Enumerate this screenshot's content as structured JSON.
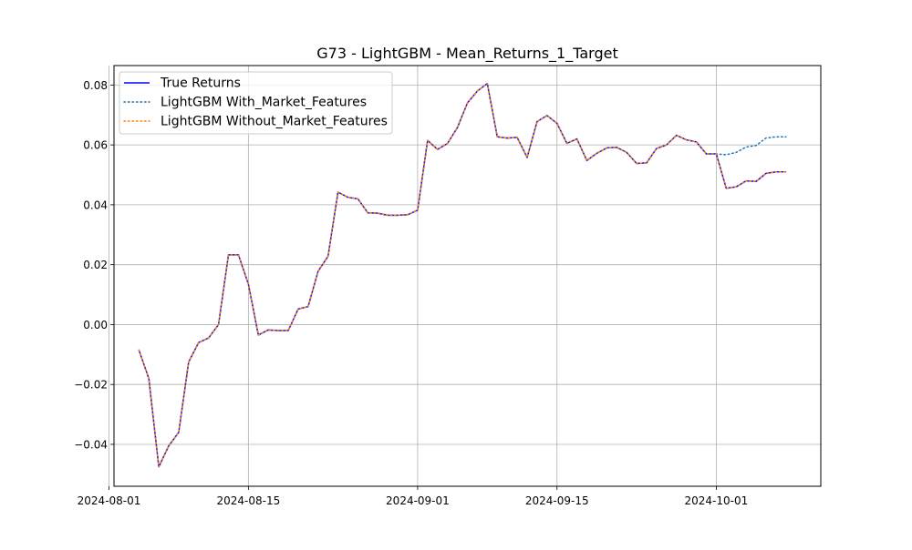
{
  "chart_data": {
    "type": "line",
    "title": "G73 - LightGBM - Mean_Returns_1_Target",
    "xlabel": "",
    "ylabel": "",
    "grid": true,
    "legend_position": "top-left",
    "x": [
      "2024-08-04",
      "2024-08-05",
      "2024-08-06",
      "2024-08-07",
      "2024-08-08",
      "2024-08-09",
      "2024-08-10",
      "2024-08-11",
      "2024-08-12",
      "2024-08-13",
      "2024-08-14",
      "2024-08-15",
      "2024-08-16",
      "2024-08-17",
      "2024-08-18",
      "2024-08-19",
      "2024-08-20",
      "2024-08-21",
      "2024-08-22",
      "2024-08-23",
      "2024-08-24",
      "2024-08-25",
      "2024-08-26",
      "2024-08-27",
      "2024-08-28",
      "2024-08-29",
      "2024-08-30",
      "2024-08-31",
      "2024-09-01",
      "2024-09-02",
      "2024-09-03",
      "2024-09-04",
      "2024-09-05",
      "2024-09-06",
      "2024-09-07",
      "2024-09-08",
      "2024-09-09",
      "2024-09-10",
      "2024-09-11",
      "2024-09-12",
      "2024-09-13",
      "2024-09-14",
      "2024-09-15",
      "2024-09-16",
      "2024-09-17",
      "2024-09-18",
      "2024-09-19",
      "2024-09-20",
      "2024-09-21",
      "2024-09-22",
      "2024-09-23",
      "2024-09-24",
      "2024-09-25",
      "2024-09-26",
      "2024-09-27",
      "2024-09-28",
      "2024-09-29",
      "2024-09-30",
      "2024-10-01",
      "2024-10-02",
      "2024-10-03",
      "2024-10-04",
      "2024-10-05",
      "2024-10-06",
      "2024-10-07",
      "2024-10-08"
    ],
    "xticks": [
      "2024-08-01",
      "2024-08-15",
      "2024-09-01",
      "2024-09-15",
      "2024-10-01"
    ],
    "xlim": [
      "2024-08-01T12:00",
      "2024-10-11T12:00"
    ],
    "ylim": [
      -0.054,
      0.0865
    ],
    "yticks": [
      -0.04,
      -0.02,
      0.0,
      0.02,
      0.04,
      0.06,
      0.08
    ],
    "ytick_labels": [
      "−0.04",
      "−0.02",
      "0.00",
      "0.02",
      "0.04",
      "0.06",
      "0.08"
    ],
    "series": [
      {
        "name": "True Returns",
        "color": "#0000ff",
        "style": "solid",
        "values": [
          -0.0085,
          -0.018,
          -0.0475,
          -0.0405,
          -0.036,
          -0.0125,
          -0.006,
          -0.0045,
          0.0,
          0.0233,
          0.0233,
          0.0135,
          -0.0035,
          -0.0018,
          -0.002,
          -0.002,
          0.0052,
          0.006,
          0.0178,
          0.0228,
          0.0442,
          0.0425,
          0.042,
          0.0373,
          0.0372,
          0.0365,
          0.0365,
          0.0367,
          0.0382,
          0.0615,
          0.0585,
          0.0605,
          0.0658,
          0.074,
          0.078,
          0.0805,
          0.0627,
          0.0623,
          0.0625,
          0.0558,
          0.0678,
          0.0698,
          0.0672,
          0.0605,
          0.062,
          0.0548,
          0.0572,
          0.059,
          0.0592,
          0.0575,
          0.0538,
          0.054,
          0.0588,
          0.06,
          0.0632,
          0.0617,
          0.061,
          0.057,
          0.057,
          0.0455,
          0.046,
          0.048,
          0.0478,
          0.0505,
          0.051,
          0.051
        ]
      },
      {
        "name": "LightGBM With_Market_Features",
        "color": "#1f77b4",
        "style": "dotted",
        "values": [
          -0.0085,
          -0.018,
          -0.0475,
          -0.0405,
          -0.036,
          -0.0125,
          -0.006,
          -0.0045,
          0.0,
          0.0233,
          0.0233,
          0.0135,
          -0.0035,
          -0.0018,
          -0.002,
          -0.002,
          0.0052,
          0.006,
          0.0178,
          0.0228,
          0.0442,
          0.0425,
          0.042,
          0.0373,
          0.0372,
          0.0365,
          0.0365,
          0.0367,
          0.0382,
          0.0615,
          0.0585,
          0.0605,
          0.0658,
          0.074,
          0.078,
          0.0805,
          0.0627,
          0.0623,
          0.0625,
          0.0558,
          0.0678,
          0.0698,
          0.0672,
          0.0605,
          0.062,
          0.0548,
          0.0572,
          0.059,
          0.0592,
          0.0575,
          0.0538,
          0.054,
          0.0588,
          0.06,
          0.0632,
          0.0617,
          0.061,
          0.057,
          0.057,
          0.0567,
          0.0575,
          0.0593,
          0.0598,
          0.0623,
          0.0627,
          0.0627
        ]
      },
      {
        "name": "LightGBM Without_Market_Features",
        "color": "#ff7f0e",
        "style": "dotted",
        "values": [
          -0.0085,
          -0.018,
          -0.0475,
          -0.0405,
          -0.036,
          -0.0125,
          -0.006,
          -0.0045,
          0.0,
          0.0233,
          0.0233,
          0.0135,
          -0.0035,
          -0.0018,
          -0.002,
          -0.002,
          0.0052,
          0.006,
          0.0178,
          0.0228,
          0.0442,
          0.0425,
          0.042,
          0.0373,
          0.0372,
          0.0365,
          0.0365,
          0.0367,
          0.0382,
          0.0615,
          0.0585,
          0.0605,
          0.0658,
          0.074,
          0.078,
          0.0805,
          0.0627,
          0.0623,
          0.0625,
          0.0558,
          0.0678,
          0.0698,
          0.0672,
          0.0605,
          0.062,
          0.0548,
          0.0572,
          0.059,
          0.0592,
          0.0575,
          0.0538,
          0.054,
          0.0588,
          0.06,
          0.0632,
          0.0617,
          0.061,
          0.057,
          0.057,
          0.0455,
          0.046,
          0.048,
          0.0478,
          0.0505,
          0.051,
          0.051
        ]
      }
    ]
  }
}
